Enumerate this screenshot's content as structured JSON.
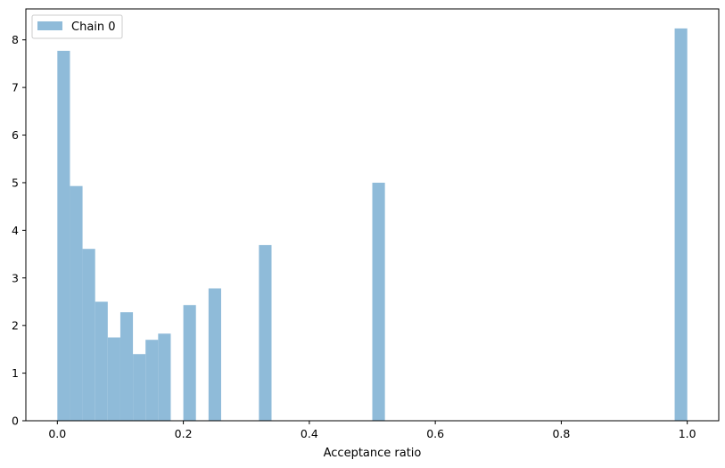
{
  "chart_data": {
    "type": "bar",
    "title": "",
    "xlabel": "Acceptance ratio",
    "ylabel": "",
    "xlim": [
      -0.05,
      1.05
    ],
    "ylim": [
      0,
      8.65
    ],
    "xticks": [
      "0.0",
      "0.2",
      "0.4",
      "0.6",
      "0.8",
      "1.0"
    ],
    "yticks": [
      "0",
      "1",
      "2",
      "3",
      "4",
      "5",
      "6",
      "7",
      "8"
    ],
    "grid": false,
    "legend_position": "top-left",
    "bar_color": "#8fbbd9",
    "bin_width": 0.02,
    "series": [
      {
        "name": "Chain 0",
        "bins": [
          {
            "x0": 0.0,
            "x1": 0.02,
            "value": 7.77
          },
          {
            "x0": 0.02,
            "x1": 0.04,
            "value": 4.93
          },
          {
            "x0": 0.04,
            "x1": 0.06,
            "value": 3.61
          },
          {
            "x0": 0.06,
            "x1": 0.08,
            "value": 2.5
          },
          {
            "x0": 0.08,
            "x1": 0.1,
            "value": 1.75
          },
          {
            "x0": 0.1,
            "x1": 0.12,
            "value": 2.28
          },
          {
            "x0": 0.12,
            "x1": 0.14,
            "value": 1.4
          },
          {
            "x0": 0.14,
            "x1": 0.16,
            "value": 1.7
          },
          {
            "x0": 0.16,
            "x1": 0.18,
            "value": 1.83
          },
          {
            "x0": 0.2,
            "x1": 0.22,
            "value": 2.43
          },
          {
            "x0": 0.24,
            "x1": 0.26,
            "value": 2.78
          },
          {
            "x0": 0.32,
            "x1": 0.34,
            "value": 3.69
          },
          {
            "x0": 0.5,
            "x1": 0.52,
            "value": 5.0
          },
          {
            "x0": 0.98,
            "x1": 1.0,
            "value": 8.24
          }
        ]
      }
    ]
  }
}
